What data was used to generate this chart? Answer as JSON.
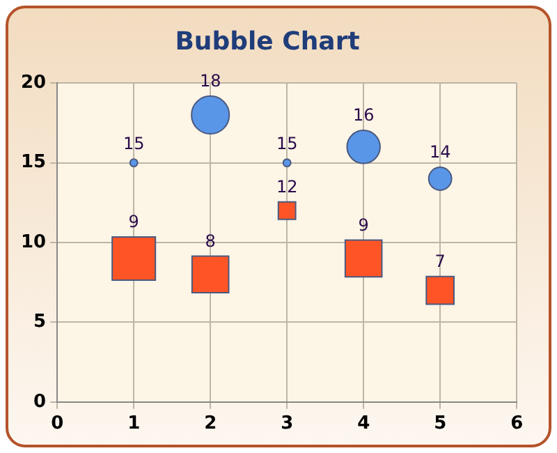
{
  "chart_data": {
    "type": "bubble",
    "title": "Bubble Chart",
    "x": [
      1,
      2,
      3,
      4,
      5
    ],
    "series": [
      {
        "color": "#5a96e8",
        "marker": "circle",
        "values": [
          15,
          18,
          15,
          16,
          14
        ],
        "sizes": [
          0.024,
          0.6,
          0.024,
          0.46,
          0.22
        ]
      },
      {
        "color": "#ff5526",
        "marker": "square",
        "values": [
          9,
          8,
          12,
          9,
          7
        ],
        "sizes": [
          1,
          0.72,
          0.16,
          0.72,
          0.41
        ]
      }
    ],
    "xlim": [
      0,
      6
    ],
    "xticks": [
      0,
      1,
      2,
      3,
      4,
      5,
      6
    ],
    "ylim": [
      0,
      20
    ],
    "yticks": [
      0,
      5,
      10,
      15,
      20
    ],
    "grid": true,
    "legend": false,
    "data_labels": true
  }
}
